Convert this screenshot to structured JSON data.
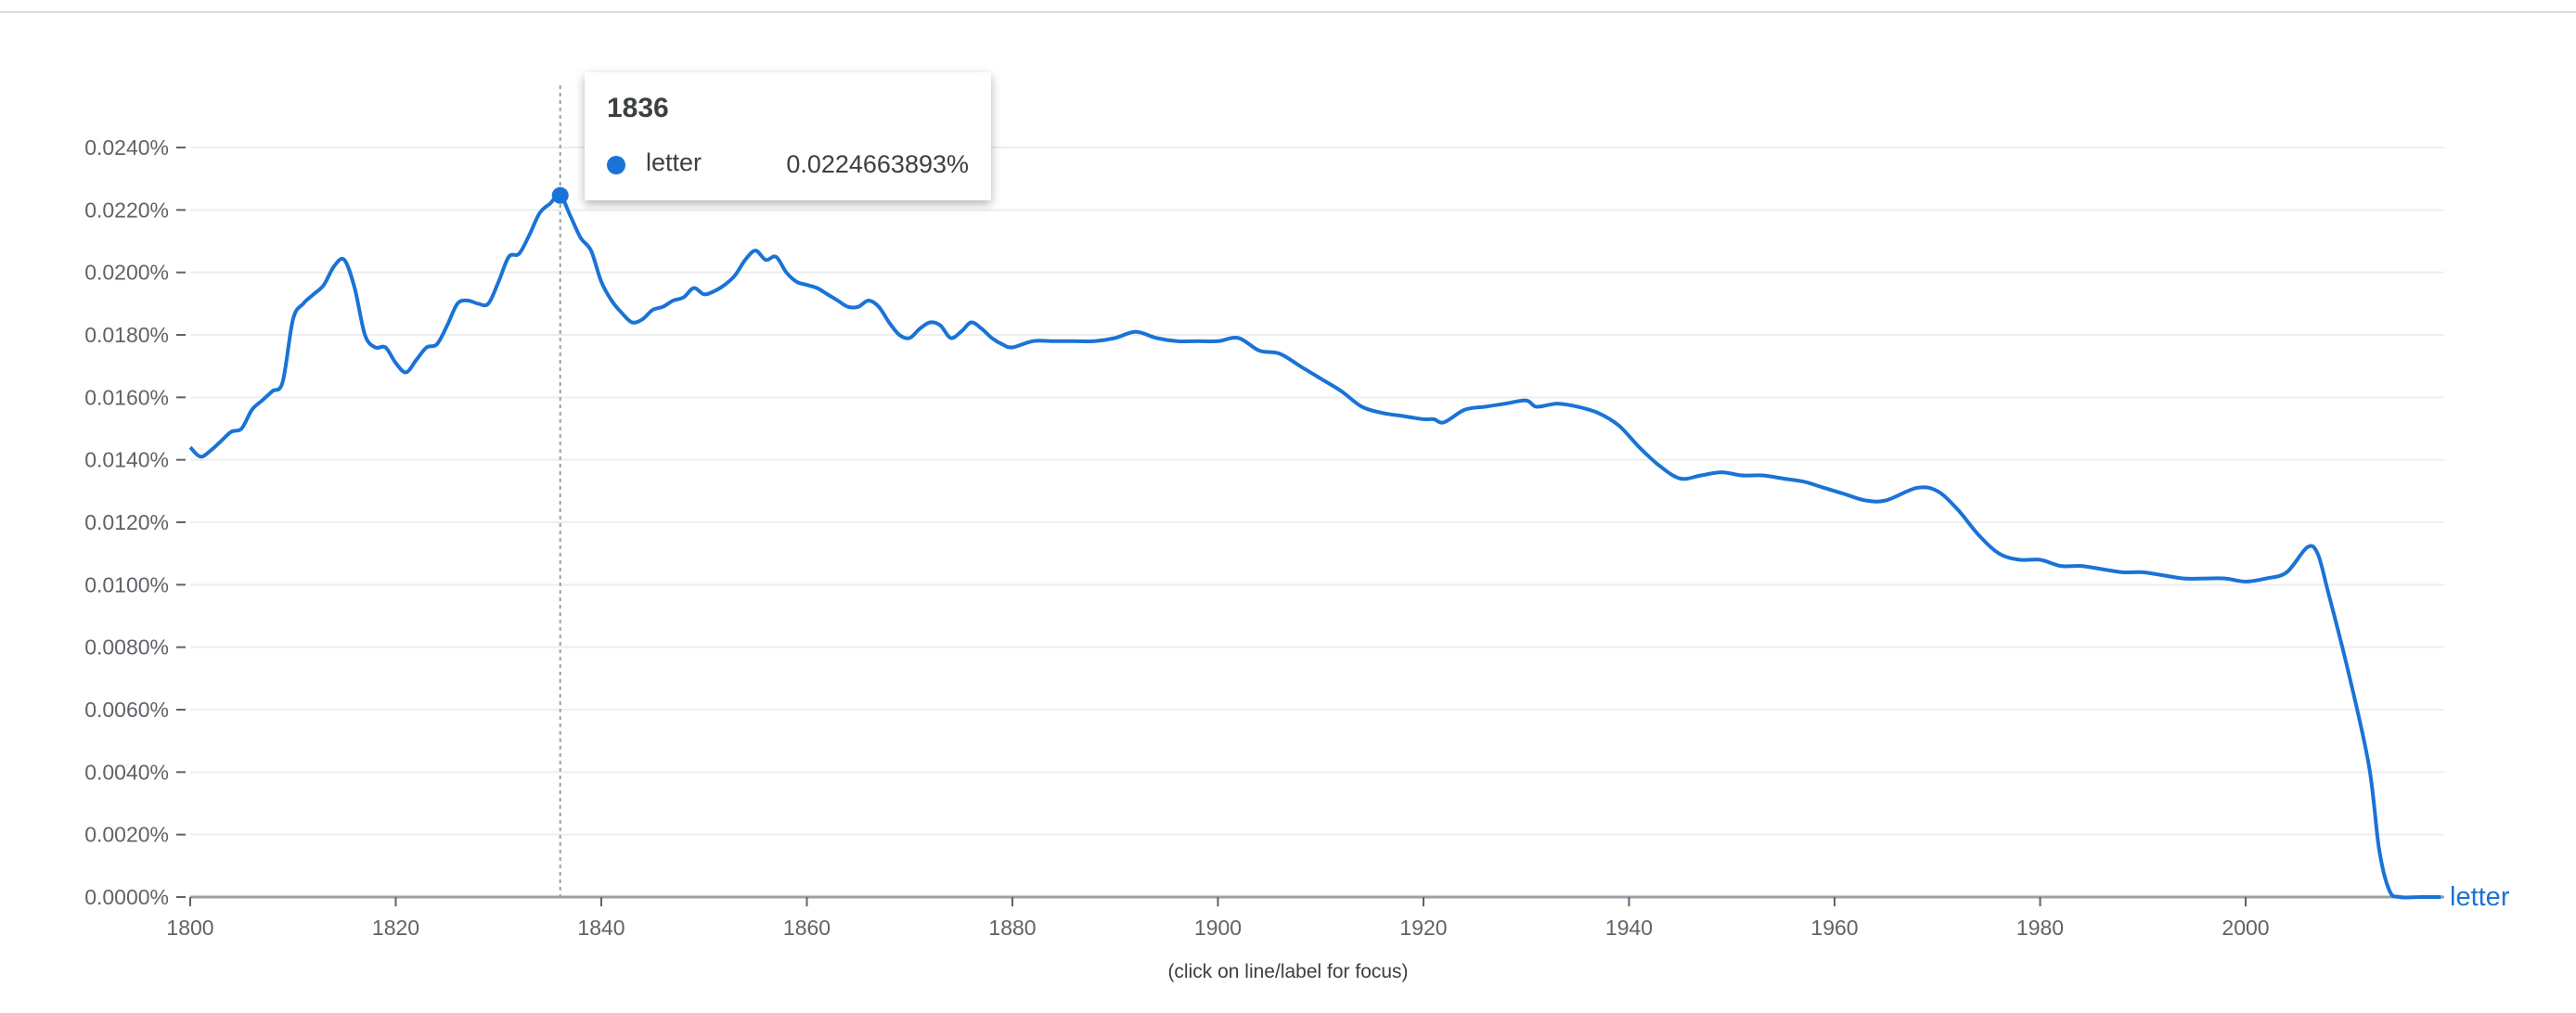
{
  "chart_data": {
    "type": "line",
    "title": "",
    "xlabel": "",
    "ylabel": "",
    "xlim": [
      1800,
      2019
    ],
    "ylim": [
      0,
      0.024
    ],
    "x_ticks": [
      "1800",
      "1820",
      "1840",
      "1860",
      "1880",
      "1900",
      "1920",
      "1940",
      "1960",
      "1980",
      "2000"
    ],
    "y_ticks": [
      "0.0000%",
      "0.0020%",
      "0.0040%",
      "0.0060%",
      "0.0080%",
      "0.0100%",
      "0.0120%",
      "0.0140%",
      "0.0160%",
      "0.0180%",
      "0.0200%",
      "0.0220%",
      "0.0240%"
    ],
    "grid": true,
    "color": "#1a73d6",
    "series": [
      {
        "name": "letter",
        "x": [
          1800,
          1801,
          1802,
          1803,
          1804,
          1805,
          1806,
          1807,
          1808,
          1809,
          1810,
          1811,
          1812,
          1813,
          1814,
          1815,
          1816,
          1817,
          1818,
          1819,
          1820,
          1821,
          1822,
          1823,
          1824,
          1825,
          1826,
          1827,
          1828,
          1829,
          1830,
          1831,
          1832,
          1833,
          1834,
          1835,
          1836,
          1837,
          1838,
          1839,
          1840,
          1841,
          1842,
          1843,
          1844,
          1845,
          1846,
          1847,
          1848,
          1849,
          1850,
          1851,
          1852,
          1853,
          1854,
          1855,
          1856,
          1857,
          1858,
          1859,
          1860,
          1861,
          1862,
          1863,
          1864,
          1865,
          1866,
          1867,
          1868,
          1869,
          1870,
          1871,
          1872,
          1873,
          1874,
          1875,
          1876,
          1877,
          1878,
          1879,
          1880,
          1882,
          1884,
          1886,
          1888,
          1890,
          1892,
          1894,
          1896,
          1898,
          1900,
          1902,
          1904,
          1906,
          1908,
          1910,
          1912,
          1914,
          1916,
          1918,
          1920,
          1921,
          1922,
          1924,
          1926,
          1928,
          1930,
          1931,
          1933,
          1935,
          1937,
          1939,
          1941,
          1943,
          1945,
          1947,
          1949,
          1951,
          1953,
          1955,
          1957,
          1959,
          1961,
          1963,
          1965,
          1968,
          1970,
          1972,
          1974,
          1976,
          1978,
          1980,
          1982,
          1984,
          1986,
          1988,
          1990,
          1992,
          1994,
          1996,
          1998,
          2000,
          2002,
          2004,
          2006,
          2007,
          2008,
          2010,
          2012,
          2013,
          2014,
          2015,
          2017,
          2019
        ],
        "y": [
          0.0144,
          0.0141,
          0.0143,
          0.0146,
          0.0149,
          0.015,
          0.0156,
          0.0159,
          0.0162,
          0.0165,
          0.0185,
          0.019,
          0.0193,
          0.0196,
          0.0202,
          0.0204,
          0.0195,
          0.018,
          0.0176,
          0.0176,
          0.0171,
          0.0168,
          0.0172,
          0.0176,
          0.0177,
          0.0183,
          0.019,
          0.0191,
          0.019,
          0.019,
          0.0197,
          0.0205,
          0.0206,
          0.0212,
          0.0219,
          0.0222,
          0.0224663893,
          0.0218,
          0.0211,
          0.0207,
          0.0197,
          0.0191,
          0.0187,
          0.0184,
          0.0185,
          0.0188,
          0.0189,
          0.0191,
          0.0192,
          0.0195,
          0.0193,
          0.0194,
          0.0196,
          0.0199,
          0.0204,
          0.0207,
          0.0204,
          0.0205,
          0.02,
          0.0197,
          0.0196,
          0.0195,
          0.0193,
          0.0191,
          0.0189,
          0.0189,
          0.0191,
          0.0189,
          0.0184,
          0.018,
          0.0179,
          0.0182,
          0.0184,
          0.0183,
          0.0179,
          0.0181,
          0.0184,
          0.0182,
          0.0179,
          0.0177,
          0.0176,
          0.0178,
          0.0178,
          0.0178,
          0.0178,
          0.0179,
          0.0181,
          0.0179,
          0.0178,
          0.0178,
          0.0178,
          0.0179,
          0.0175,
          0.0174,
          0.017,
          0.0166,
          0.0162,
          0.0157,
          0.0155,
          0.0154,
          0.0153,
          0.0153,
          0.0152,
          0.0156,
          0.0157,
          0.0158,
          0.0159,
          0.0157,
          0.0158,
          0.0157,
          0.0155,
          0.0151,
          0.0144,
          0.0138,
          0.0134,
          0.0135,
          0.0136,
          0.0135,
          0.0135,
          0.0134,
          0.0133,
          0.0131,
          0.0129,
          0.0127,
          0.0127,
          0.0131,
          0.013,
          0.0124,
          0.0116,
          0.011,
          0.0108,
          0.0108,
          0.0106,
          0.0106,
          0.0105,
          0.0104,
          0.0104,
          0.0103,
          0.0102,
          0.0102,
          0.0102,
          0.0101,
          0.0102,
          0.0104,
          0.0112,
          0.011,
          0.0098,
          0.0072,
          0.0042,
          0.0015,
          0.0002,
          0.0,
          0.0,
          0.0
        ]
      }
    ],
    "end_label": "letter",
    "tooltip": {
      "year": "1836",
      "series": "letter",
      "value": "0.0224663893%"
    },
    "focus_hint": "(click on line/label for focus)"
  }
}
